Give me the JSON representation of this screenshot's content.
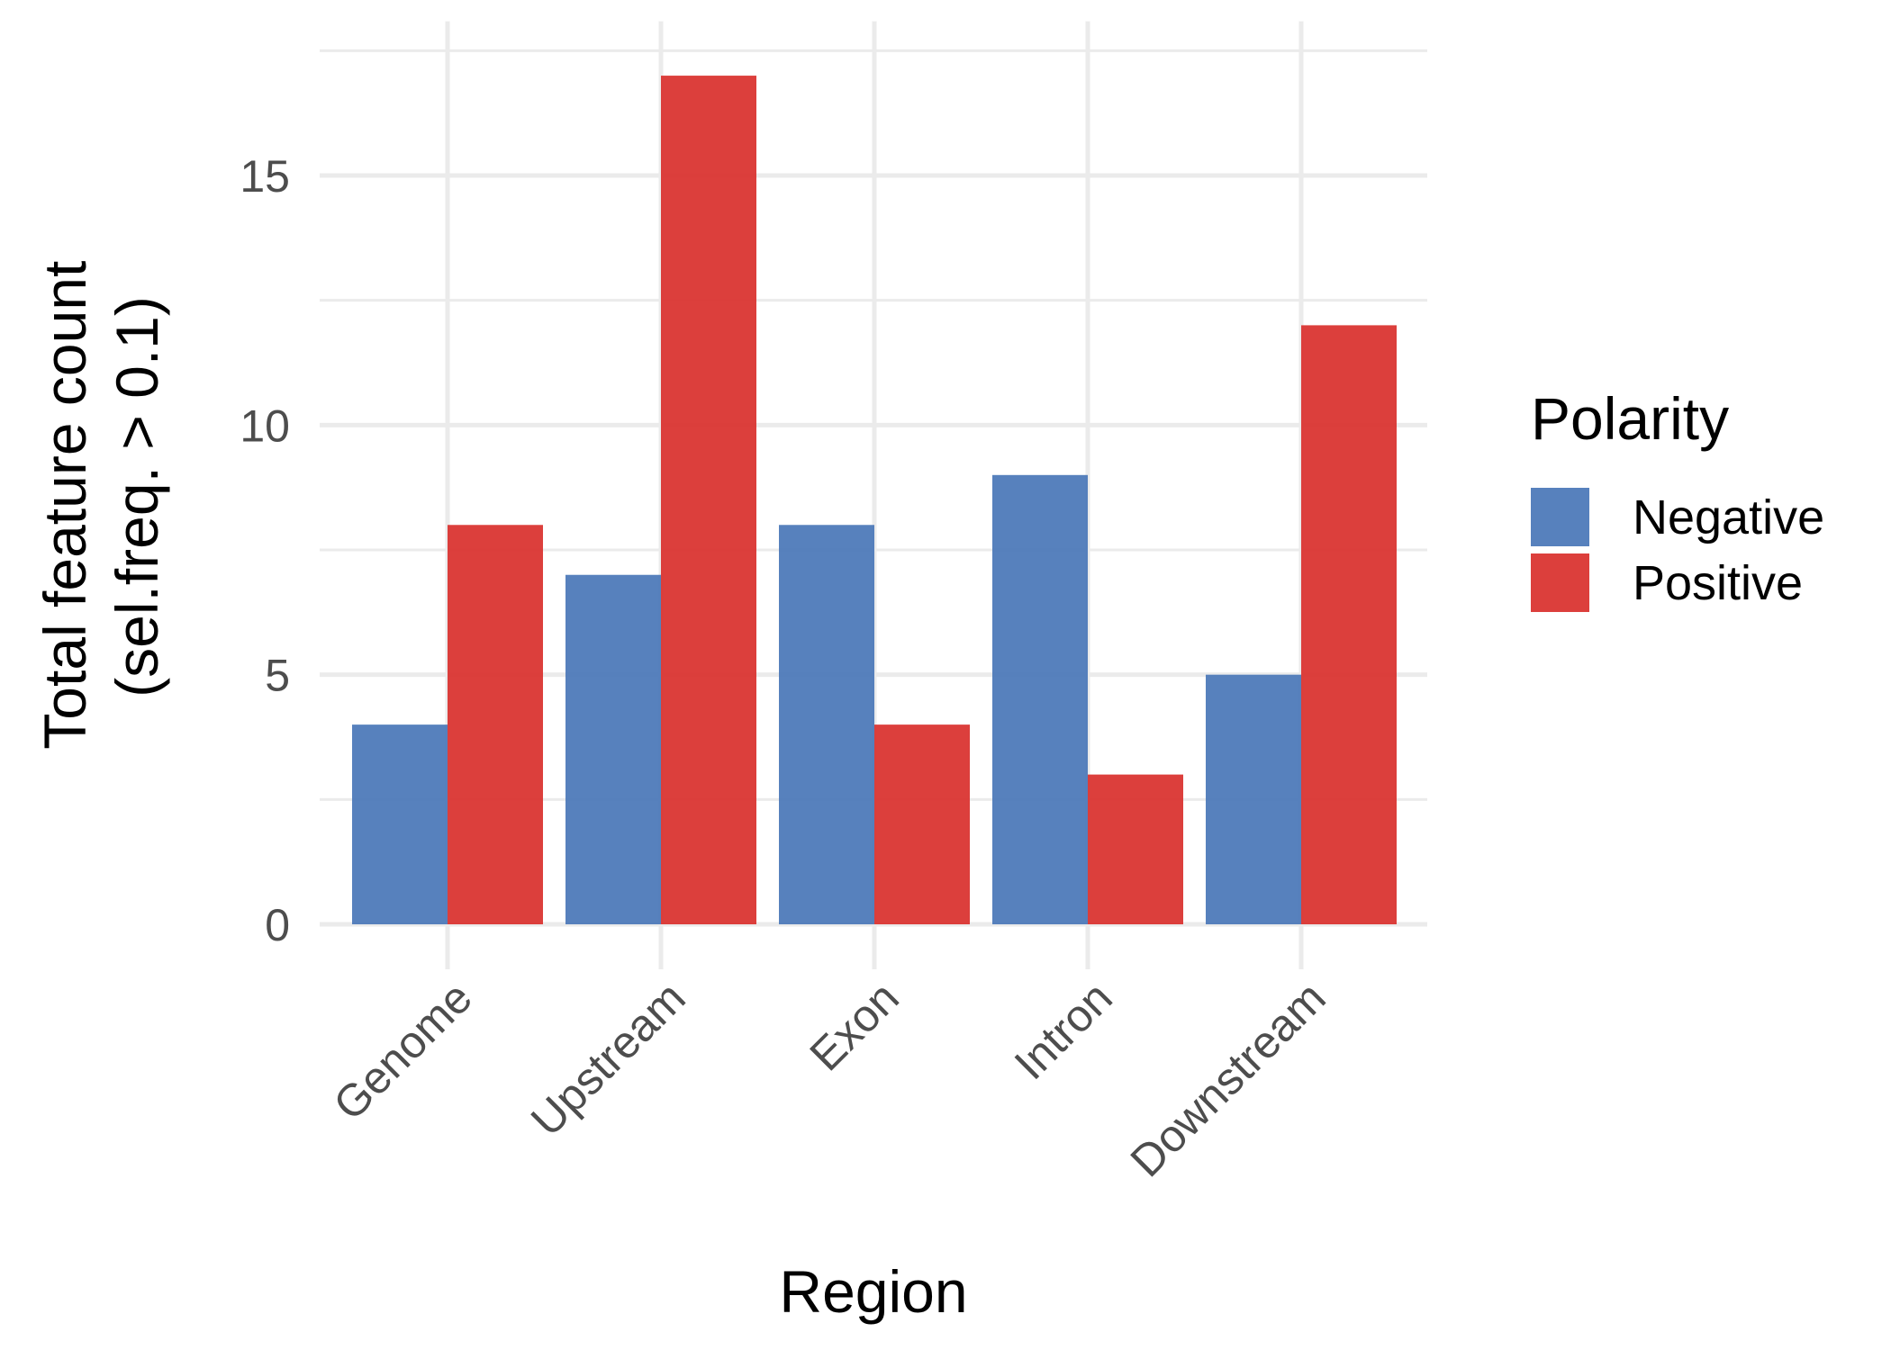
{
  "chart_data": {
    "type": "bar",
    "title": "",
    "xlabel": "Region",
    "ylabel_line1": "Total feature count",
    "ylabel_line2": "(sel.freq. > 0.1)",
    "categories": [
      "Genome",
      "Upstream",
      "Exon",
      "Intron",
      "Downstream"
    ],
    "series": [
      {
        "name": "Negative",
        "color": "#4e7ab9",
        "values": [
          4,
          7,
          8,
          9,
          5
        ]
      },
      {
        "name": "Positive",
        "color": "#da3532",
        "values": [
          8,
          17,
          4,
          3,
          12
        ]
      }
    ],
    "yticks": [
      0,
      5,
      10,
      15
    ],
    "ylim": [
      0,
      18
    ],
    "grid": true,
    "legend": {
      "title": "Polarity",
      "position": "right"
    }
  }
}
